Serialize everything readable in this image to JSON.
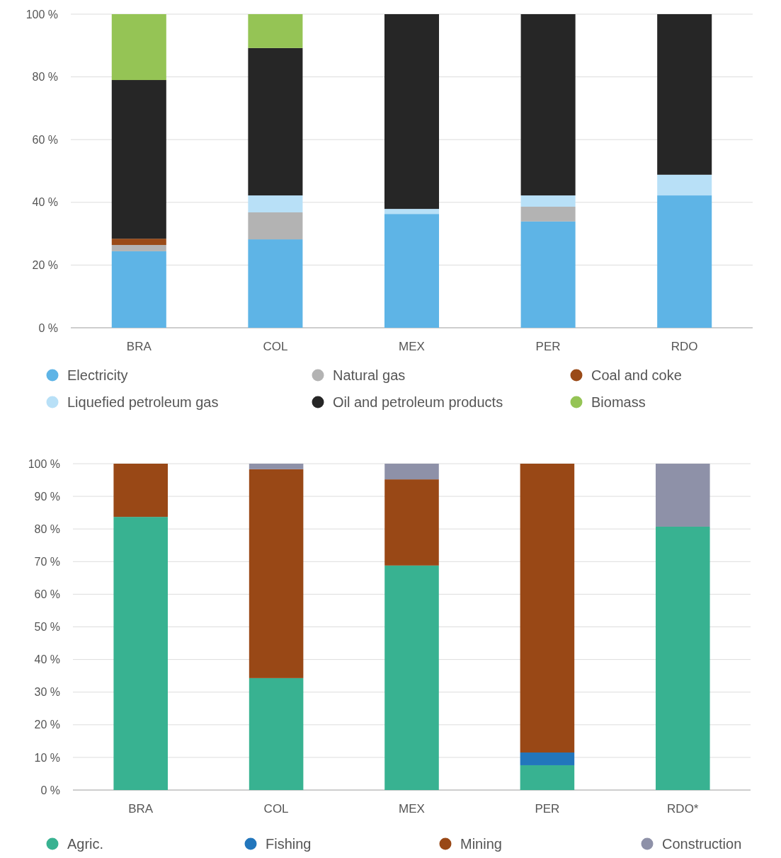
{
  "chart_data": [
    {
      "type": "bar",
      "stacked": true,
      "categories": [
        "BRA",
        "COL",
        "MEX",
        "PER",
        "RDO"
      ],
      "ylim": [
        0,
        100
      ],
      "yticks": [
        {
          "value": 0,
          "label": "0 %"
        },
        {
          "value": 20,
          "label": "20 %"
        },
        {
          "value": 40,
          "label": "40 %"
        },
        {
          "value": 60,
          "label": "60 %"
        },
        {
          "value": 80,
          "label": "80 %"
        },
        {
          "value": 100,
          "label": "100 %"
        }
      ],
      "grid": "y",
      "legend": "bottom",
      "series": [
        {
          "name": "Electricity",
          "color": "#5eb4e6",
          "values": [
            24.4,
            28.2,
            36.3,
            33.9,
            42.2
          ]
        },
        {
          "name": "Natural gas",
          "color": "#b3b3b3",
          "values": [
            2,
            8.6,
            0,
            4.7,
            0
          ]
        },
        {
          "name": "Coal and coke",
          "color": "#9a4a17",
          "values": [
            2,
            0,
            0,
            0,
            0
          ]
        },
        {
          "name": "Liquefied petroleum gas",
          "color": "#b8e0f7",
          "values": [
            0,
            5.4,
            1.6,
            3.6,
            6.6
          ]
        },
        {
          "name": "Oil and petroleum products",
          "color": "#262626",
          "values": [
            50.6,
            47,
            62.1,
            57.8,
            51.2
          ]
        },
        {
          "name": "Biomass",
          "color": "#95c455",
          "values": [
            21,
            10.8,
            0,
            0,
            0
          ]
        }
      ]
    },
    {
      "type": "bar",
      "stacked": true,
      "categories": [
        "BRA",
        "COL",
        "MEX",
        "PER",
        "RDO*"
      ],
      "ylim": [
        0,
        100
      ],
      "yticks": [
        {
          "value": 0,
          "label": "0 %"
        },
        {
          "value": 10,
          "label": "10 %"
        },
        {
          "value": 20,
          "label": "20 %"
        },
        {
          "value": 30,
          "label": "30 %"
        },
        {
          "value": 40,
          "label": "40 %"
        },
        {
          "value": 50,
          "label": "50 %"
        },
        {
          "value": 60,
          "label": "60 %"
        },
        {
          "value": 70,
          "label": "70 %"
        },
        {
          "value": 80,
          "label": "80 %"
        },
        {
          "value": 90,
          "label": "90 %"
        },
        {
          "value": 100,
          "label": "100 %"
        }
      ],
      "grid": "y",
      "legend": "bottom",
      "series": [
        {
          "name": "Agric.",
          "color": "#38b291",
          "values": [
            83.7,
            34.3,
            68.8,
            7.6,
            80.7
          ]
        },
        {
          "name": "Fishing",
          "color": "#2276bc",
          "values": [
            0,
            0,
            0,
            3.9,
            0
          ]
        },
        {
          "name": "Mining",
          "color": "#994816",
          "values": [
            16.3,
            64,
            26.4,
            88.5,
            0
          ]
        },
        {
          "name": "Construction",
          "color": "#8e91a8",
          "values": [
            0,
            1.7,
            4.8,
            0,
            19.3
          ]
        }
      ]
    }
  ]
}
